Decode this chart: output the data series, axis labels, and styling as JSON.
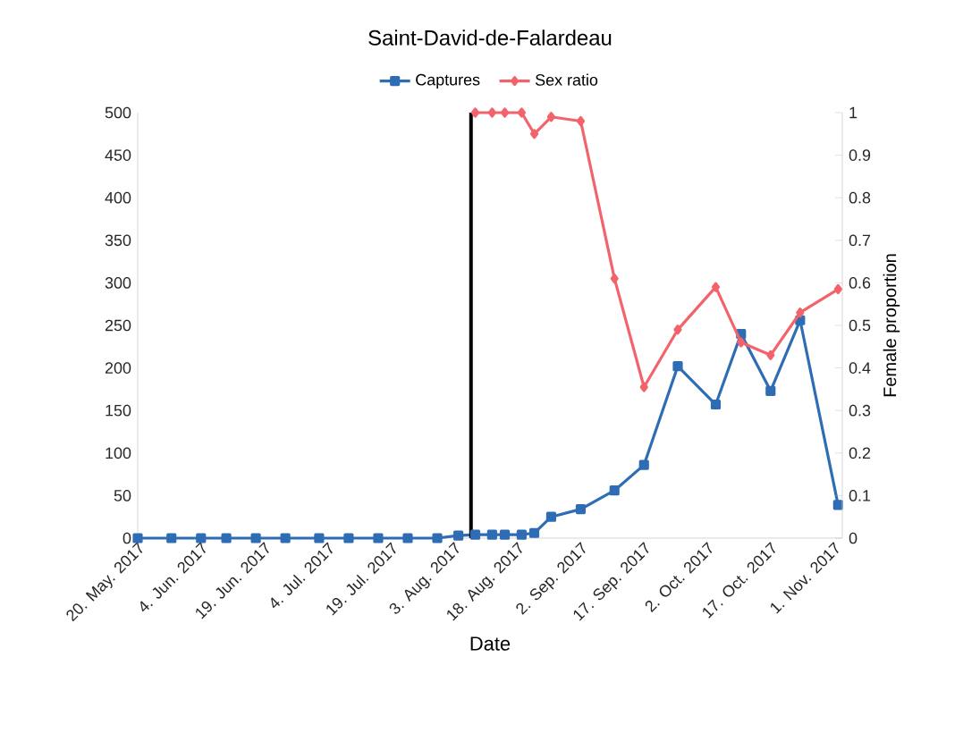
{
  "chart_data": {
    "type": "line",
    "title": "Saint-David-de-Falardeau",
    "xlabel": "Date",
    "y2label": "Female proportion",
    "legend": "top",
    "line_style": "solid",
    "xlim": [
      "2017-05-20",
      "2017-11-03"
    ],
    "xticks": [
      {
        "value": "2017-05-20",
        "label": "20. May. 2017"
      },
      {
        "value": "2017-06-04",
        "label": "4. Jun. 2017"
      },
      {
        "value": "2017-06-19",
        "label": "19. Jun. 2017"
      },
      {
        "value": "2017-07-04",
        "label": "4. Jul. 2017"
      },
      {
        "value": "2017-07-19",
        "label": "19. Jul. 2017"
      },
      {
        "value": "2017-08-03",
        "label": "3. Aug. 2017"
      },
      {
        "value": "2017-08-18",
        "label": "18. Aug. 2017"
      },
      {
        "value": "2017-09-02",
        "label": "2. Sep. 2017"
      },
      {
        "value": "2017-09-17",
        "label": "17. Sep. 2017"
      },
      {
        "value": "2017-10-02",
        "label": "2. Oct. 2017"
      },
      {
        "value": "2017-10-17",
        "label": "17. Oct. 2017"
      },
      {
        "value": "2017-11-01",
        "label": "1. Nov. 2017"
      }
    ],
    "ylim": [
      0,
      500
    ],
    "yticks": [
      0,
      50,
      100,
      150,
      200,
      250,
      300,
      350,
      400,
      450,
      500
    ],
    "y2lim": [
      0,
      1
    ],
    "y2ticks": [
      0,
      0.1,
      0.2,
      0.3,
      0.4,
      0.5,
      0.6,
      0.7,
      0.8,
      0.9,
      1
    ],
    "ref_lines": [
      {
        "axis": "x",
        "value": "2017-08-07",
        "color": "#000000"
      }
    ],
    "series": [
      {
        "name": "Captures",
        "color": "#2e6db4",
        "marker": "square",
        "x": [
          "2017-05-20",
          "2017-05-28",
          "2017-06-04",
          "2017-06-10",
          "2017-06-17",
          "2017-06-24",
          "2017-07-02",
          "2017-07-09",
          "2017-07-16",
          "2017-07-23",
          "2017-07-30",
          "2017-08-04",
          "2017-08-08",
          "2017-08-12",
          "2017-08-15",
          "2017-08-19",
          "2017-08-22",
          "2017-08-26",
          "2017-09-02",
          "2017-09-10",
          "2017-09-17",
          "2017-09-25",
          "2017-10-04",
          "2017-10-10",
          "2017-10-17",
          "2017-10-24",
          "2017-11-02"
        ],
        "values": [
          0,
          0,
          0,
          0,
          0,
          0,
          0,
          0,
          0,
          0,
          0,
          3,
          4,
          4,
          4,
          4,
          6,
          25,
          34,
          56,
          86,
          202,
          157,
          240,
          173,
          256,
          39
        ]
      },
      {
        "name": "Sex ratio",
        "color": "#f2636b",
        "marker": "diamond",
        "axis": "y2",
        "x": [
          "2017-08-08",
          "2017-08-12",
          "2017-08-15",
          "2017-08-19",
          "2017-08-22",
          "2017-08-26",
          "2017-09-02",
          "2017-09-10",
          "2017-09-17",
          "2017-09-25",
          "2017-10-04",
          "2017-10-10",
          "2017-10-17",
          "2017-10-24",
          "2017-11-02"
        ],
        "values": [
          1,
          1,
          1,
          1,
          0.95,
          0.99,
          0.98,
          0.61,
          0.355,
          0.49,
          0.59,
          0.46,
          0.43,
          0.53,
          0.585
        ]
      }
    ]
  }
}
